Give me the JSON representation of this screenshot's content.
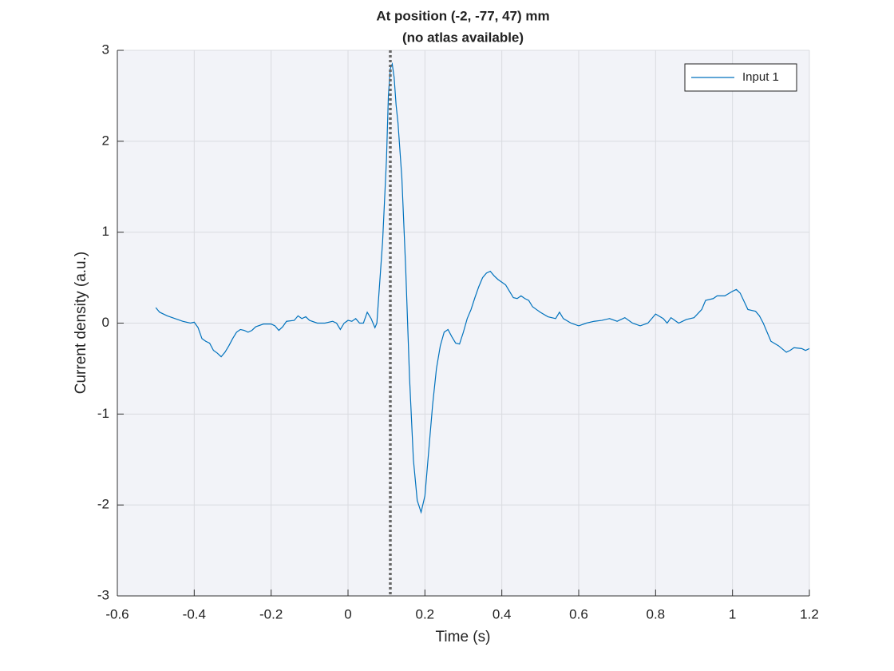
{
  "chart_data": {
    "type": "line",
    "title": [
      "At position (-2, -77, 47) mm",
      "(no atlas available)"
    ],
    "xlabel": "Time (s)",
    "ylabel": "Current density (a.u.)",
    "x": [
      -0.5,
      -0.49,
      -0.47,
      -0.45,
      -0.43,
      -0.41,
      -0.4,
      -0.39,
      -0.38,
      -0.37,
      -0.36,
      -0.35,
      -0.34,
      -0.33,
      -0.32,
      -0.31,
      -0.3,
      -0.29,
      -0.28,
      -0.27,
      -0.26,
      -0.25,
      -0.24,
      -0.22,
      -0.2,
      -0.19,
      -0.18,
      -0.17,
      -0.16,
      -0.14,
      -0.13,
      -0.12,
      -0.11,
      -0.1,
      -0.08,
      -0.06,
      -0.04,
      -0.03,
      -0.02,
      -0.01,
      0,
      0.01,
      0.02,
      0.03,
      0.04,
      0.05,
      0.06,
      0.07,
      0.075,
      0.08,
      0.09,
      0.1,
      0.105,
      0.11,
      0.115,
      0.12,
      0.125,
      0.13,
      0.14,
      0.15,
      0.16,
      0.17,
      0.18,
      0.19,
      0.2,
      0.21,
      0.22,
      0.23,
      0.24,
      0.25,
      0.26,
      0.27,
      0.28,
      0.29,
      0.3,
      0.31,
      0.32,
      0.33,
      0.34,
      0.35,
      0.36,
      0.37,
      0.38,
      0.39,
      0.4,
      0.41,
      0.42,
      0.43,
      0.44,
      0.45,
      0.46,
      0.47,
      0.48,
      0.49,
      0.5,
      0.52,
      0.54,
      0.55,
      0.56,
      0.58,
      0.6,
      0.62,
      0.64,
      0.66,
      0.68,
      0.7,
      0.72,
      0.74,
      0.76,
      0.78,
      0.8,
      0.82,
      0.83,
      0.84,
      0.86,
      0.88,
      0.9,
      0.92,
      0.93,
      0.95,
      0.96,
      0.98,
      1.0,
      1.01,
      1.02,
      1.04,
      1.06,
      1.07,
      1.08,
      1.1,
      1.12,
      1.14,
      1.15,
      1.16,
      1.18,
      1.19,
      1.2
    ],
    "series": [
      {
        "name": "Input 1",
        "color": "#0072bd",
        "values": [
          0.17,
          0.12,
          0.08,
          0.05,
          0.02,
          0.0,
          0.01,
          -0.05,
          -0.17,
          -0.2,
          -0.22,
          -0.3,
          -0.33,
          -0.37,
          -0.32,
          -0.25,
          -0.17,
          -0.1,
          -0.07,
          -0.08,
          -0.1,
          -0.08,
          -0.04,
          -0.01,
          -0.01,
          -0.03,
          -0.08,
          -0.04,
          0.02,
          0.03,
          0.08,
          0.05,
          0.07,
          0.03,
          0.0,
          0.0,
          0.02,
          0.0,
          -0.07,
          0.0,
          0.03,
          0.02,
          0.05,
          0.0,
          0.0,
          0.12,
          0.05,
          -0.05,
          0.0,
          0.3,
          0.9,
          1.8,
          2.5,
          2.8,
          2.85,
          2.7,
          2.4,
          2.2,
          1.6,
          0.6,
          -0.6,
          -1.5,
          -1.95,
          -2.08,
          -1.9,
          -1.4,
          -0.9,
          -0.5,
          -0.25,
          -0.1,
          -0.07,
          -0.15,
          -0.22,
          -0.23,
          -0.1,
          0.05,
          0.15,
          0.28,
          0.4,
          0.5,
          0.55,
          0.57,
          0.52,
          0.48,
          0.45,
          0.42,
          0.35,
          0.28,
          0.27,
          0.3,
          0.27,
          0.25,
          0.18,
          0.15,
          0.12,
          0.07,
          0.05,
          0.12,
          0.05,
          0.0,
          -0.03,
          0.0,
          0.02,
          0.03,
          0.05,
          0.02,
          0.06,
          0.0,
          -0.03,
          0.0,
          0.1,
          0.05,
          0.0,
          0.06,
          0.0,
          0.04,
          0.06,
          0.15,
          0.25,
          0.27,
          0.3,
          0.3,
          0.35,
          0.37,
          0.33,
          0.15,
          0.13,
          0.08,
          0.0,
          -0.2,
          -0.25,
          -0.32,
          -0.3,
          -0.27,
          -0.28,
          -0.3,
          -0.28
        ]
      }
    ],
    "vline": {
      "x": 0.11,
      "color": "#666666"
    },
    "xlim": [
      -0.6,
      1.2
    ],
    "xticks": [
      -0.6,
      -0.4,
      -0.2,
      0,
      0.2,
      0.4,
      0.6,
      0.8,
      1,
      1.2
    ],
    "ylim": [
      -3,
      3
    ],
    "yticks": [
      -3,
      -2,
      -1,
      0,
      1,
      2,
      3
    ],
    "grid": true,
    "legend": "upper right"
  }
}
